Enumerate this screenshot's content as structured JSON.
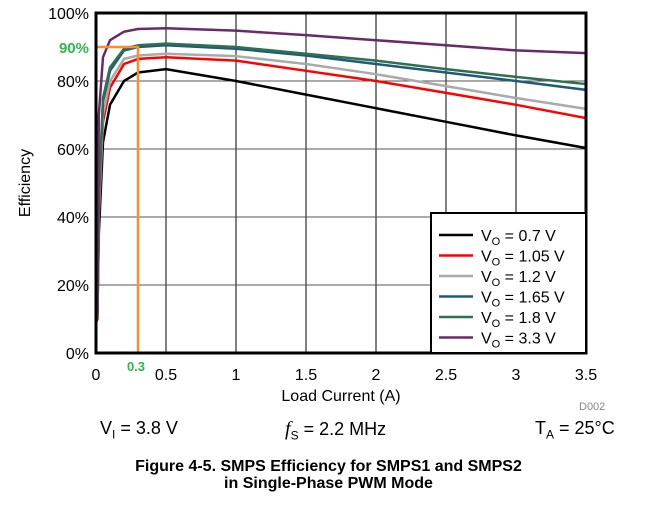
{
  "chart_data": {
    "type": "line",
    "xlabel": "Load Current (A)",
    "ylabel": "Efficiency",
    "xlim": [
      0,
      3.5
    ],
    "ylim": [
      0,
      100
    ],
    "xticks": [
      "0",
      "0.5",
      "1",
      "1.5",
      "2",
      "2.5",
      "3",
      "3.5"
    ],
    "yticks": [
      "0%",
      "20%",
      "40%",
      "60%",
      "80%",
      "100%"
    ],
    "grid": true,
    "legend_position": "bottom-right",
    "x": [
      0.01,
      0.02,
      0.05,
      0.1,
      0.2,
      0.3,
      0.5,
      1,
      1.5,
      2,
      2.5,
      3,
      3.5
    ],
    "series": [
      {
        "name_main": "V",
        "name_sub": "O",
        "name_rest": " = 0.7 V",
        "color": "#000000",
        "values": [
          10,
          35,
          62,
          73,
          80,
          82.5,
          83.5,
          80,
          76,
          72,
          68,
          64,
          60.3
        ]
      },
      {
        "name_main": "V",
        "name_sub": "O",
        "name_rest": " = 1.05 V",
        "color": "#ff0000",
        "values": [
          10,
          40,
          68,
          78,
          85,
          86.5,
          87,
          86,
          83,
          80,
          76.5,
          73,
          69.1
        ]
      },
      {
        "name_main": "V",
        "name_sub": "O",
        "name_rest": " = 1.2 V",
        "color": "#aaaaaa",
        "values": [
          11,
          42,
          70,
          80,
          86.5,
          87.5,
          88,
          87.3,
          85,
          82,
          78.5,
          75,
          71.8
        ]
      },
      {
        "name_main": "V",
        "name_sub": "O",
        "name_rest": " = 1.65 V",
        "color": "#1f5a7a",
        "values": [
          11,
          45,
          74,
          83,
          89,
          90,
          90.5,
          89.5,
          87.5,
          85,
          82.5,
          80,
          77.4
        ]
      },
      {
        "name_main": "V",
        "name_sub": "O",
        "name_rest": " = 1.8 V",
        "color": "#2e7050",
        "values": [
          11,
          46,
          75,
          84,
          89.5,
          90.5,
          91,
          90,
          88,
          86,
          83.5,
          81.2,
          79.1
        ]
      },
      {
        "name_main": "V",
        "name_sub": "O",
        "name_rest": " = 3.3 V",
        "color": "#6a2a6a",
        "values": [
          12,
          70,
          87,
          92,
          94.5,
          95.3,
          95.5,
          94.8,
          93.5,
          92,
          90.5,
          89,
          88.2
        ]
      }
    ],
    "annotation": {
      "x_label": "0.3",
      "y_label": "90%",
      "x": 0.3,
      "y": 90,
      "line_color": "#ff8c2a",
      "label_color": "#2db84a"
    },
    "figure_id": "D002"
  },
  "conditions": {
    "vi_main": "V",
    "vi_sub": "I",
    "vi_rest": " = 3.8 V",
    "fs_main": "f",
    "fs_sub": "S",
    "fs_rest": " = 2.2 MHz",
    "ta_main": "T",
    "ta_sub": "A",
    "ta_rest": " = 25°C"
  },
  "caption": {
    "line1": "Figure 4-5. SMPS Efficiency for SMPS1 and SMPS2",
    "line2": "in Single-Phase PWM Mode"
  }
}
